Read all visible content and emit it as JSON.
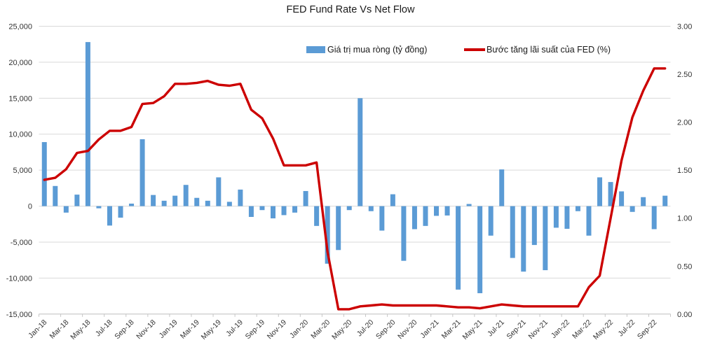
{
  "title": "FED Fund Rate Vs Net Flow",
  "legend": {
    "bars_label": "Giá trị mua ròng (tỷ đồng)",
    "line_label": "Bước tăng lãi suất của FED (%)"
  },
  "colors": {
    "bar": "#5B9BD5",
    "line": "#CC0000",
    "grid": "#D9D9D9",
    "axis": "#C6C6C6",
    "tick_text": "#333333"
  },
  "chart_data": {
    "type": "bar",
    "subtype": "bar+line dual axis",
    "title": "FED Fund Rate Vs Net Flow",
    "grid": "horizontal",
    "legend_position": "top",
    "categories": [
      "Jan-18",
      "Feb-18",
      "Mar-18",
      "Apr-18",
      "May-18",
      "Jun-18",
      "Jul-18",
      "Aug-18",
      "Sep-18",
      "Oct-18",
      "Nov-18",
      "Dec-18",
      "Jan-19",
      "Feb-19",
      "Mar-19",
      "Apr-19",
      "May-19",
      "Jun-19",
      "Jul-19",
      "Aug-19",
      "Sep-19",
      "Oct-19",
      "Nov-19",
      "Dec-19",
      "Jan-20",
      "Feb-20",
      "Mar-20",
      "Apr-20",
      "May-20",
      "Jun-20",
      "Jul-20",
      "Aug-20",
      "Sep-20",
      "Oct-20",
      "Nov-20",
      "Dec-20",
      "Jan-21",
      "Feb-21",
      "Mar-21",
      "Apr-21",
      "May-21",
      "Jun-21",
      "Jul-21",
      "Aug-21",
      "Sep-21",
      "Oct-21",
      "Nov-21",
      "Dec-21",
      "Jan-22",
      "Feb-22",
      "Mar-22",
      "Apr-22",
      "May-22",
      "Jun-22",
      "Jul-22",
      "Aug-22",
      "Sep-22",
      "Oct-22"
    ],
    "x_tick_labels": [
      "Jan-18",
      "Mar-18",
      "May-18",
      "Jul-18",
      "Sep-18",
      "Nov-18",
      "Jan-19",
      "Mar-19",
      "May-19",
      "Jul-19",
      "Sep-19",
      "Nov-19",
      "Jan-20",
      "Mar-20",
      "May-20",
      "Jul-20",
      "Sep-20",
      "Nov-20",
      "Jan-21",
      "Mar-21",
      "May-21",
      "Jul-21",
      "Sep-21",
      "Nov-21",
      "Jan-22",
      "Mar-22",
      "May-22",
      "Jul-22",
      "Sep-22"
    ],
    "series": [
      {
        "name": "Giá trị mua ròng (tỷ đồng)",
        "type": "bar",
        "axis": "left",
        "values": [
          8900,
          2800,
          -900,
          1600,
          22800,
          -300,
          -2700,
          -1600,
          350,
          9300,
          1550,
          750,
          1450,
          2950,
          1150,
          750,
          4000,
          600,
          2300,
          -1500,
          -550,
          -1700,
          -1250,
          -900,
          2100,
          -2750,
          -8000,
          -6100,
          -550,
          15000,
          -700,
          -3400,
          1650,
          -7600,
          -3200,
          -2750,
          -1350,
          -1300,
          -11600,
          300,
          -12100,
          -4100,
          5100,
          -7200,
          -9100,
          -5400,
          -8900,
          -3000,
          -3150,
          -700,
          -4100,
          4000,
          3350,
          2050,
          -800,
          1250,
          -3200,
          1450
        ]
      },
      {
        "name": "Bước tăng lãi suất của FED (%)",
        "type": "line",
        "axis": "right",
        "values": [
          1.4,
          1.42,
          1.51,
          1.68,
          1.7,
          1.82,
          1.91,
          1.91,
          1.95,
          2.19,
          2.2,
          2.27,
          2.4,
          2.4,
          2.41,
          2.43,
          2.39,
          2.38,
          2.4,
          2.13,
          2.04,
          1.83,
          1.55,
          1.55,
          1.55,
          1.58,
          0.65,
          0.05,
          0.05,
          0.08,
          0.09,
          0.1,
          0.09,
          0.09,
          0.09,
          0.09,
          0.09,
          0.08,
          0.07,
          0.07,
          0.06,
          0.08,
          0.1,
          0.09,
          0.08,
          0.08,
          0.08,
          0.08,
          0.08,
          0.08,
          0.28,
          0.4,
          1.0,
          1.6,
          2.05,
          2.33,
          2.56,
          2.56
        ]
      }
    ],
    "left_axis": {
      "min": -15000,
      "max": 25000,
      "step": 5000,
      "tick_labels": [
        "25,000",
        "20,000",
        "15,000",
        "10,000",
        "5,000",
        "0",
        "-5,000",
        "-10,000",
        "-15,000"
      ]
    },
    "right_axis": {
      "min": 0,
      "max": 3,
      "step": 0.5,
      "tick_labels": [
        "3.00",
        "2.50",
        "2.00",
        "1.50",
        "1.00",
        "0.50",
        "0.00"
      ]
    }
  }
}
